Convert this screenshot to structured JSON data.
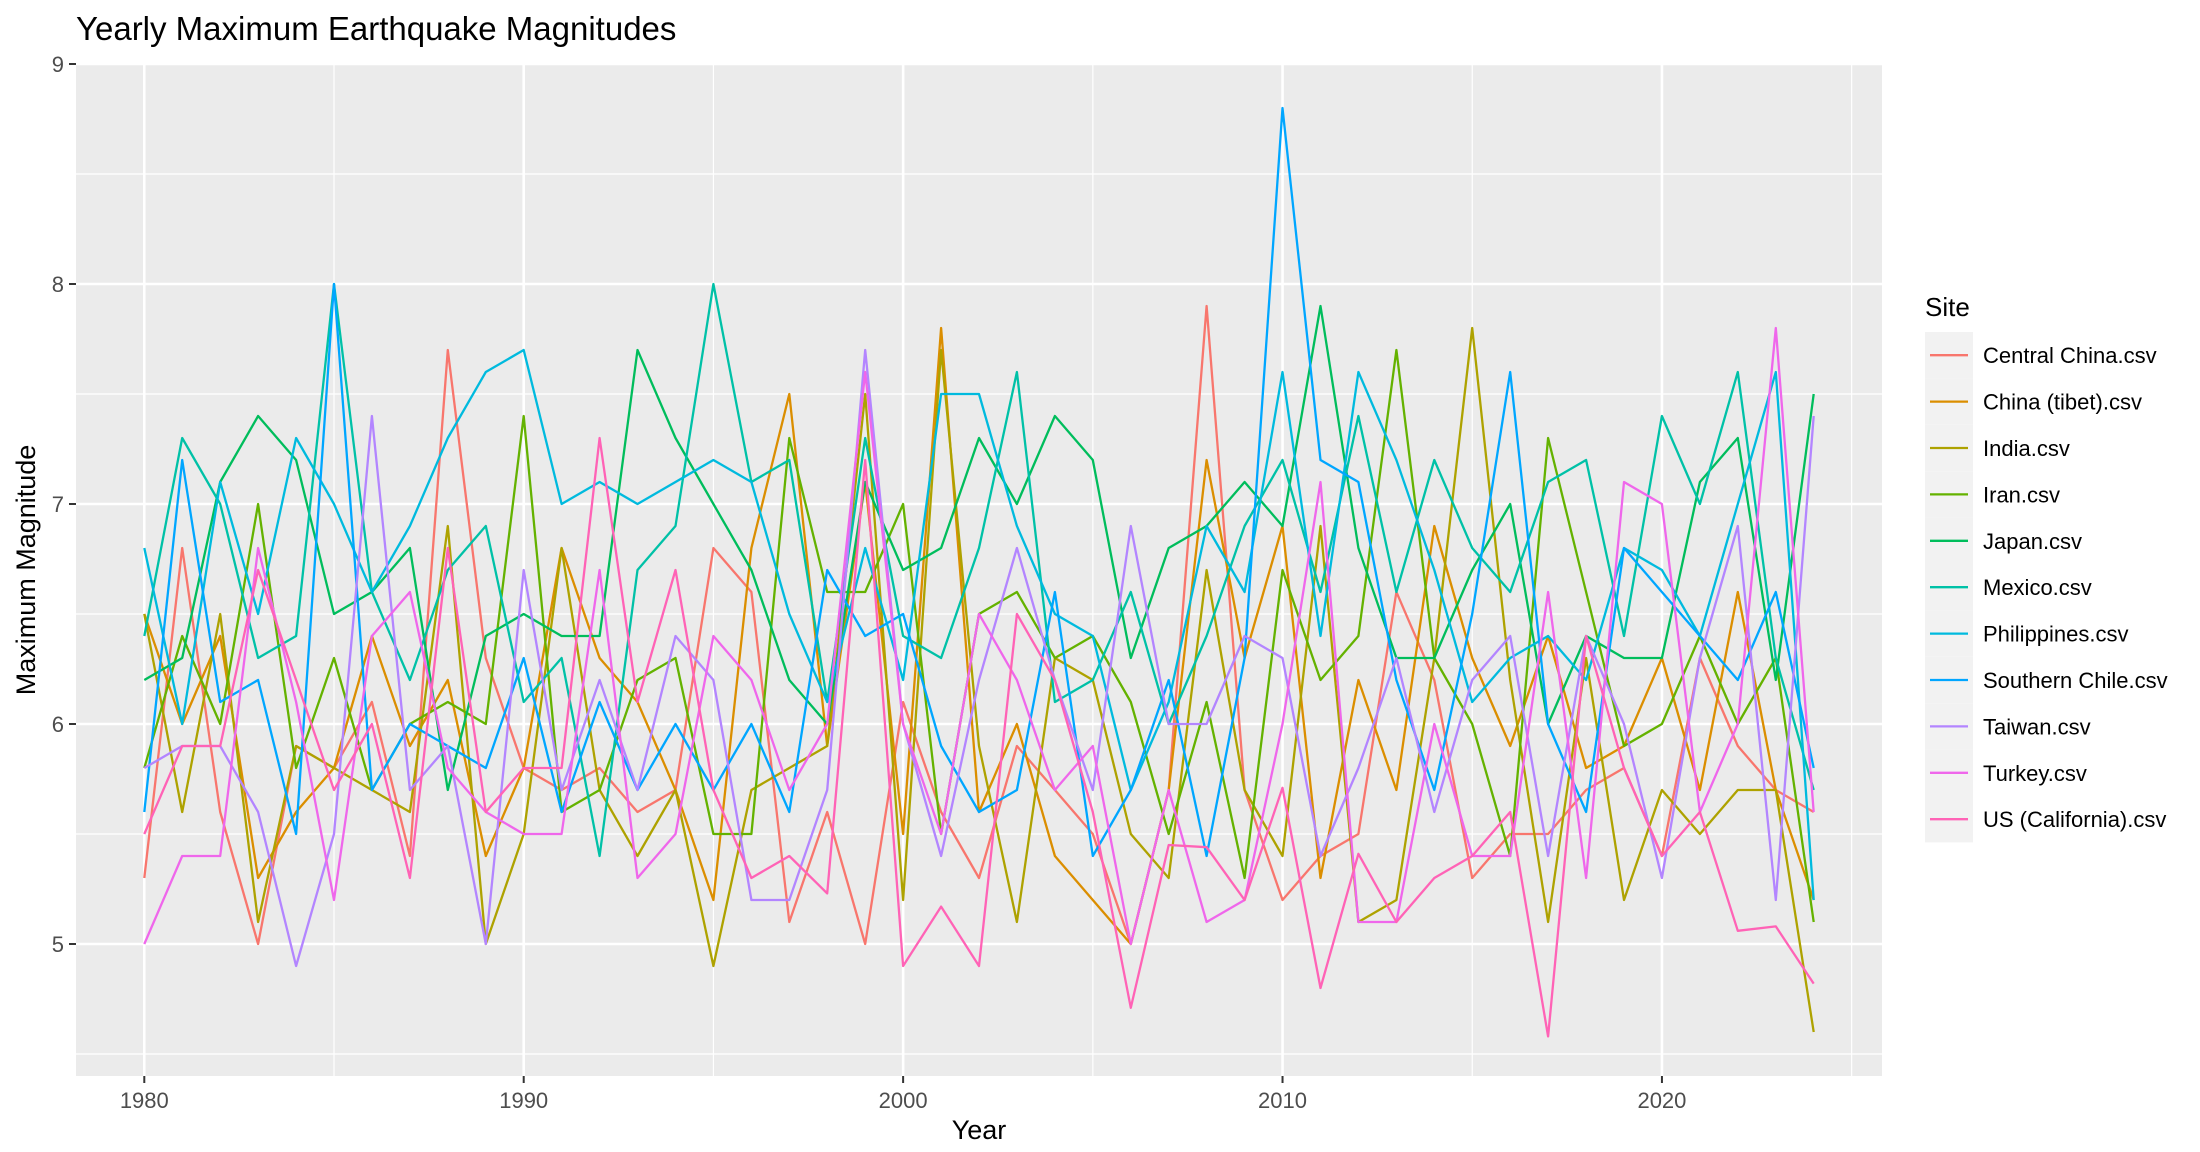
{
  "chart_data": {
    "type": "line",
    "title": "Yearly Maximum Earthquake Magnitudes",
    "xlabel": "Year",
    "ylabel": "Maximum Magnitude",
    "xlim": [
      1978.2,
      2025.8
    ],
    "ylim": [
      4.4,
      9.0
    ],
    "x_ticks": [
      1980,
      1990,
      2000,
      2010,
      2020
    ],
    "x_tick_labels": [
      "1980",
      "1990",
      "2000",
      "2010",
      "2020"
    ],
    "y_ticks": [
      5,
      6,
      7,
      8,
      9
    ],
    "y_tick_labels": [
      "5",
      "6",
      "7",
      "8",
      "9"
    ],
    "grid": true,
    "legend": {
      "title": "Site",
      "position": "right"
    },
    "x": [
      1980,
      1981,
      1982,
      1983,
      1984,
      1985,
      1986,
      1987,
      1988,
      1989,
      1990,
      1991,
      1992,
      1993,
      1994,
      1995,
      1996,
      1997,
      1998,
      1999,
      2000,
      2001,
      2002,
      2003,
      2004,
      2005,
      2006,
      2007,
      2008,
      2009,
      2010,
      2011,
      2012,
      2013,
      2014,
      2015,
      2016,
      2017,
      2018,
      2019,
      2020,
      2021,
      2022,
      2023,
      2024
    ],
    "series": [
      {
        "name": "Central China.csv",
        "color": "#F8766D",
        "values": [
          5.3,
          6.8,
          5.6,
          5.0,
          5.9,
          5.8,
          6.1,
          5.4,
          7.7,
          6.3,
          5.8,
          5.7,
          5.8,
          5.6,
          5.7,
          6.8,
          6.6,
          5.1,
          5.6,
          5.0,
          6.1,
          5.6,
          5.3,
          5.9,
          5.7,
          5.5,
          5.0,
          5.7,
          7.9,
          5.7,
          5.2,
          5.4,
          5.5,
          6.6,
          6.2,
          5.3,
          5.5,
          5.5,
          5.7,
          5.8,
          5.4,
          6.3,
          5.9,
          5.7,
          5.6
        ]
      },
      {
        "name": "China (tibet).csv",
        "color": "#DB8E00",
        "values": [
          6.5,
          6.0,
          6.4,
          5.3,
          5.6,
          5.8,
          6.4,
          5.9,
          6.2,
          5.4,
          5.8,
          6.8,
          6.3,
          6.1,
          5.7,
          5.2,
          6.8,
          7.5,
          5.9,
          7.1,
          5.5,
          7.8,
          5.6,
          6.0,
          5.4,
          5.2,
          5.0,
          5.7,
          7.2,
          6.3,
          6.9,
          5.3,
          6.2,
          5.7,
          6.9,
          6.3,
          5.9,
          6.4,
          5.8,
          5.9,
          6.3,
          5.7,
          6.6,
          5.7,
          5.2
        ]
      },
      {
        "name": "India.csv",
        "color": "#AEA200",
        "values": [
          6.5,
          5.6,
          6.5,
          5.1,
          5.9,
          5.8,
          5.7,
          5.6,
          6.9,
          5.0,
          5.5,
          6.8,
          5.7,
          5.4,
          5.7,
          4.9,
          5.7,
          5.8,
          5.9,
          7.5,
          5.2,
          7.7,
          5.9,
          5.1,
          6.3,
          6.2,
          5.5,
          5.3,
          6.7,
          5.7,
          5.4,
          6.9,
          5.1,
          5.2,
          6.3,
          7.8,
          6.2,
          5.1,
          6.3,
          5.2,
          5.7,
          5.5,
          5.7,
          5.7,
          4.6
        ]
      },
      {
        "name": "Iran.csv",
        "color": "#64B200",
        "values": [
          5.8,
          6.4,
          6.0,
          7.0,
          5.8,
          6.3,
          5.7,
          6.0,
          6.1,
          6.0,
          7.4,
          5.6,
          5.7,
          6.2,
          6.3,
          5.5,
          5.5,
          7.3,
          6.6,
          6.6,
          7.0,
          5.5,
          6.5,
          6.6,
          6.3,
          6.4,
          6.1,
          5.5,
          6.1,
          5.3,
          6.7,
          6.2,
          6.4,
          7.7,
          6.3,
          6.0,
          5.4,
          7.3,
          6.6,
          5.9,
          6.0,
          6.4,
          6.0,
          6.3,
          5.1
        ]
      },
      {
        "name": "Japan.csv",
        "color": "#00BD5C",
        "values": [
          6.2,
          6.3,
          7.1,
          7.4,
          7.2,
          6.5,
          6.6,
          6.8,
          5.7,
          6.4,
          6.5,
          6.4,
          6.4,
          7.7,
          7.3,
          7.0,
          6.7,
          6.2,
          6.0,
          7.1,
          6.7,
          6.8,
          7.3,
          7.0,
          7.4,
          7.2,
          6.3,
          6.8,
          6.9,
          7.1,
          6.9,
          7.9,
          6.8,
          6.3,
          6.3,
          6.7,
          7.0,
          6.0,
          6.4,
          6.3,
          6.3,
          7.1,
          7.3,
          6.2,
          7.5
        ]
      },
      {
        "name": "Mexico.csv",
        "color": "#00C1A7",
        "values": [
          6.4,
          7.3,
          7.0,
          6.3,
          6.4,
          8.0,
          6.6,
          6.2,
          6.7,
          6.9,
          6.1,
          6.3,
          5.4,
          6.7,
          6.9,
          8.0,
          7.1,
          7.2,
          6.1,
          7.3,
          6.4,
          6.3,
          6.8,
          7.6,
          6.1,
          6.2,
          6.6,
          6.0,
          6.4,
          6.9,
          7.2,
          6.6,
          7.4,
          6.6,
          7.2,
          6.8,
          6.6,
          7.1,
          7.2,
          6.4,
          7.4,
          7.0,
          7.6,
          6.3,
          5.7
        ]
      },
      {
        "name": "Philippines.csv",
        "color": "#00BADE",
        "values": [
          6.8,
          6.0,
          7.1,
          6.5,
          7.3,
          7.0,
          6.6,
          6.9,
          7.3,
          7.6,
          7.7,
          7.0,
          7.1,
          7.0,
          7.1,
          7.2,
          7.1,
          6.5,
          6.1,
          6.8,
          6.2,
          7.5,
          7.5,
          6.9,
          6.5,
          6.4,
          5.7,
          6.1,
          6.9,
          6.6,
          7.6,
          6.4,
          7.6,
          7.2,
          6.7,
          6.1,
          6.3,
          6.4,
          6.2,
          6.8,
          6.7,
          6.4,
          7.0,
          7.6,
          5.2
        ]
      },
      {
        "name": "Southern Chile.csv",
        "color": "#00A6FF",
        "values": [
          5.6,
          7.2,
          6.1,
          6.2,
          5.5,
          8.0,
          5.7,
          6.0,
          5.9,
          5.8,
          6.3,
          5.6,
          6.1,
          5.7,
          6.0,
          5.7,
          6.0,
          5.6,
          6.7,
          6.4,
          6.5,
          5.9,
          5.6,
          5.7,
          6.6,
          5.4,
          5.7,
          6.2,
          5.4,
          6.3,
          8.8,
          7.2,
          7.1,
          6.2,
          5.7,
          6.5,
          7.6,
          6.0,
          5.6,
          6.8,
          6.6,
          6.4,
          6.2,
          6.6,
          5.8
        ]
      },
      {
        "name": "Taiwan.csv",
        "color": "#B385FF",
        "values": [
          5.8,
          5.9,
          5.9,
          5.6,
          4.9,
          5.5,
          7.4,
          5.7,
          5.9,
          5.0,
          6.7,
          5.7,
          6.2,
          5.7,
          6.4,
          6.2,
          5.2,
          5.2,
          5.7,
          7.7,
          6.0,
          5.4,
          6.2,
          6.8,
          6.2,
          5.7,
          6.9,
          6.0,
          6.0,
          6.4,
          6.3,
          5.4,
          5.8,
          6.3,
          5.6,
          6.2,
          6.4,
          5.4,
          6.4,
          6.0,
          5.3,
          6.3,
          6.9,
          5.2,
          7.4
        ]
      },
      {
        "name": "Turkey.csv",
        "color": "#EF67EB",
        "values": [
          5.0,
          5.4,
          5.4,
          6.8,
          6.1,
          5.2,
          6.4,
          6.6,
          5.8,
          5.6,
          5.5,
          5.5,
          6.7,
          5.3,
          5.5,
          6.4,
          6.2,
          5.7,
          6.0,
          7.6,
          6.0,
          5.5,
          6.5,
          6.2,
          5.7,
          5.9,
          5.0,
          5.7,
          5.1,
          5.2,
          6.0,
          7.1,
          5.1,
          5.1,
          6.0,
          5.4,
          5.4,
          6.6,
          5.3,
          7.1,
          7.0,
          5.6,
          6.0,
          7.8,
          5.6
        ]
      },
      {
        "name": "US (California).csv",
        "color": "#FF63B6",
        "values": [
          5.5,
          5.9,
          5.9,
          6.7,
          6.2,
          5.7,
          6.0,
          5.3,
          6.8,
          5.6,
          5.8,
          5.8,
          7.3,
          6.1,
          6.7,
          5.7,
          5.3,
          5.4,
          5.23,
          7.2,
          4.9,
          5.17,
          4.9,
          6.5,
          6.2,
          5.6,
          4.71,
          5.45,
          5.44,
          5.2,
          5.71,
          4.8,
          5.41,
          5.1,
          5.3,
          5.4,
          5.6,
          4.58,
          6.4,
          5.8,
          5.4,
          5.6,
          5.06,
          5.08,
          4.82
        ]
      }
    ]
  }
}
